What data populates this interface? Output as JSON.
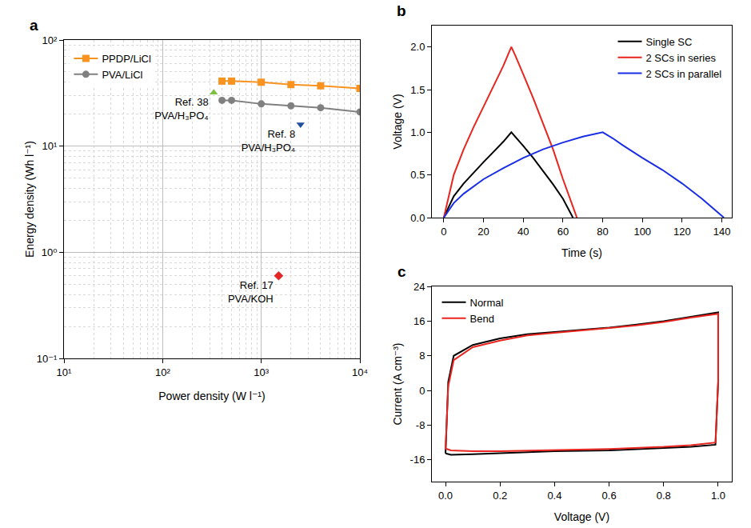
{
  "chart_data": [
    {
      "type": "line",
      "title": "a",
      "x_label": "Power density (W l⁻¹)",
      "y_label": "Energy density (Wh l⁻¹)",
      "log": true,
      "grid": true,
      "legend": "upper left",
      "xlim": [
        10,
        10000
      ],
      "xticks": [
        {
          "value": 10,
          "label": "10¹"
        },
        {
          "value": 100,
          "label": "10²"
        },
        {
          "value": 1000,
          "label": "10³"
        },
        {
          "value": 10000,
          "label": "10⁴"
        }
      ],
      "ylim": [
        0.1,
        100
      ],
      "yticks": [
        {
          "value": 0.1,
          "label": "10⁻¹"
        },
        {
          "value": 1,
          "label": "10⁰"
        },
        {
          "value": 10,
          "label": "10¹"
        },
        {
          "value": 100,
          "label": "10²"
        }
      ],
      "series": [
        {
          "name": "PPDP/LiCl",
          "color": "#f7931e",
          "marker": "square",
          "line_style": "solid",
          "x": [
            400,
            500,
            1000,
            2000,
            4000,
            10000
          ],
          "values": [
            41,
            41,
            40,
            38,
            37,
            35
          ]
        },
        {
          "name": "PVA/LiCl",
          "color": "#808080",
          "marker": "circle",
          "line_style": "solid",
          "x": [
            400,
            500,
            1000,
            2000,
            4000,
            10000
          ],
          "values": [
            27,
            27,
            25,
            24,
            23,
            21
          ]
        },
        {
          "name": "Ref. 38\nPVA/H₃PO₄",
          "type": "scatter",
          "color": "#7ac143",
          "marker": "triangle-up",
          "x": [
            330
          ],
          "values": [
            32
          ]
        },
        {
          "name": "Ref. 8\nPVA/H₃PO₄",
          "type": "scatter",
          "color": "#1f4e9c",
          "marker": "triangle-down",
          "x": [
            2500
          ],
          "values": [
            16
          ]
        },
        {
          "name": "Ref. 17\nPVA/KOH",
          "type": "scatter",
          "color": "#e32626",
          "marker": "diamond",
          "x": [
            1500
          ],
          "values": [
            0.6
          ]
        }
      ]
    },
    {
      "type": "line",
      "title": "b",
      "x_label": "Time (s)",
      "y_label": "Voltage (V)",
      "grid": false,
      "legend": "upper right",
      "xlim": [
        -6,
        145
      ],
      "xticks": [
        0,
        20,
        40,
        60,
        80,
        100,
        120,
        140
      ],
      "ylim": [
        0,
        2.25
      ],
      "yticks": [
        {
          "value": 0,
          "label": "0.0"
        },
        {
          "value": 0.5,
          "label": "0.5"
        },
        {
          "value": 1,
          "label": "1.0"
        },
        {
          "value": 1.5,
          "label": "1.5"
        },
        {
          "value": 2,
          "label": "2.0"
        }
      ],
      "series": [
        {
          "name": "Single SC",
          "color": "#000000",
          "line_style": "solid",
          "x": [
            0,
            2,
            5,
            10,
            15,
            20,
            25,
            30,
            34,
            36,
            40,
            45,
            50,
            55,
            60,
            65
          ],
          "values": [
            0,
            0.1,
            0.25,
            0.4,
            0.53,
            0.65,
            0.77,
            0.89,
            1.0,
            0.95,
            0.84,
            0.7,
            0.55,
            0.39,
            0.22,
            0
          ]
        },
        {
          "name": "2 SCs in series",
          "color": "#e8251f",
          "line_style": "solid",
          "x": [
            0,
            2,
            5,
            10,
            15,
            20,
            25,
            30,
            34,
            36,
            40,
            45,
            50,
            55,
            60,
            67
          ],
          "values": [
            0,
            0.2,
            0.5,
            0.8,
            1.06,
            1.3,
            1.54,
            1.78,
            2.0,
            1.9,
            1.68,
            1.4,
            1.1,
            0.8,
            0.45,
            0
          ]
        },
        {
          "name": "2 SCs in parallel",
          "color": "#1a2ee6",
          "line_style": "solid",
          "x": [
            0,
            5,
            10,
            20,
            30,
            40,
            50,
            60,
            70,
            80,
            85,
            90,
            100,
            110,
            120,
            130,
            141
          ],
          "values": [
            0,
            0.17,
            0.28,
            0.45,
            0.58,
            0.7,
            0.8,
            0.88,
            0.95,
            1.0,
            0.93,
            0.85,
            0.7,
            0.56,
            0.4,
            0.22,
            0
          ]
        }
      ]
    },
    {
      "type": "line",
      "title": "c",
      "x_label": "Voltage (V)",
      "y_label": "Current (A cm⁻³)",
      "grid": false,
      "legend": "upper left",
      "xlim": [
        -0.05,
        1.05
      ],
      "xticks": [
        {
          "value": 0,
          "label": "0.0"
        },
        {
          "value": 0.2,
          "label": "0.2"
        },
        {
          "value": 0.4,
          "label": "0.4"
        },
        {
          "value": 0.6,
          "label": "0.6"
        },
        {
          "value": 0.8,
          "label": "0.8"
        },
        {
          "value": 1,
          "label": "1.0"
        }
      ],
      "ylim": [
        -21,
        24
      ],
      "yticks": [
        -16,
        -8,
        0,
        8,
        16,
        24
      ],
      "series": [
        {
          "name": "Normal",
          "color": "#000000",
          "line_style": "solid",
          "x": [
            0,
            0.01,
            0.03,
            0.1,
            0.2,
            0.3,
            0.4,
            0.5,
            0.6,
            0.7,
            0.8,
            0.9,
            1.0,
            1.0,
            0.99,
            0.9,
            0.8,
            0.6,
            0.4,
            0.2,
            0.1,
            0.02,
            0.005,
            0
          ],
          "values": [
            -14.5,
            2,
            8,
            10.5,
            12,
            13,
            13.5,
            14,
            14.5,
            15.2,
            16,
            17,
            18,
            2,
            -12.5,
            -13,
            -13.3,
            -13.8,
            -14,
            -14.5,
            -14.7,
            -14.8,
            -14.5,
            -14.5
          ]
        },
        {
          "name": "Bend",
          "color": "#e8251f",
          "line_style": "solid",
          "x": [
            0,
            0.01,
            0.03,
            0.1,
            0.2,
            0.3,
            0.4,
            0.5,
            0.6,
            0.7,
            0.8,
            0.9,
            1.0,
            1.0,
            0.99,
            0.9,
            0.8,
            0.6,
            0.4,
            0.2,
            0.1,
            0.02,
            0.005,
            0
          ],
          "values": [
            -13.5,
            1,
            7,
            10,
            11.5,
            12.7,
            13.3,
            13.8,
            14.4,
            15,
            15.8,
            16.8,
            17.7,
            2,
            -12,
            -12.6,
            -13,
            -13.5,
            -13.8,
            -14,
            -14,
            -13.8,
            -13.5,
            -13.5
          ]
        }
      ]
    }
  ]
}
